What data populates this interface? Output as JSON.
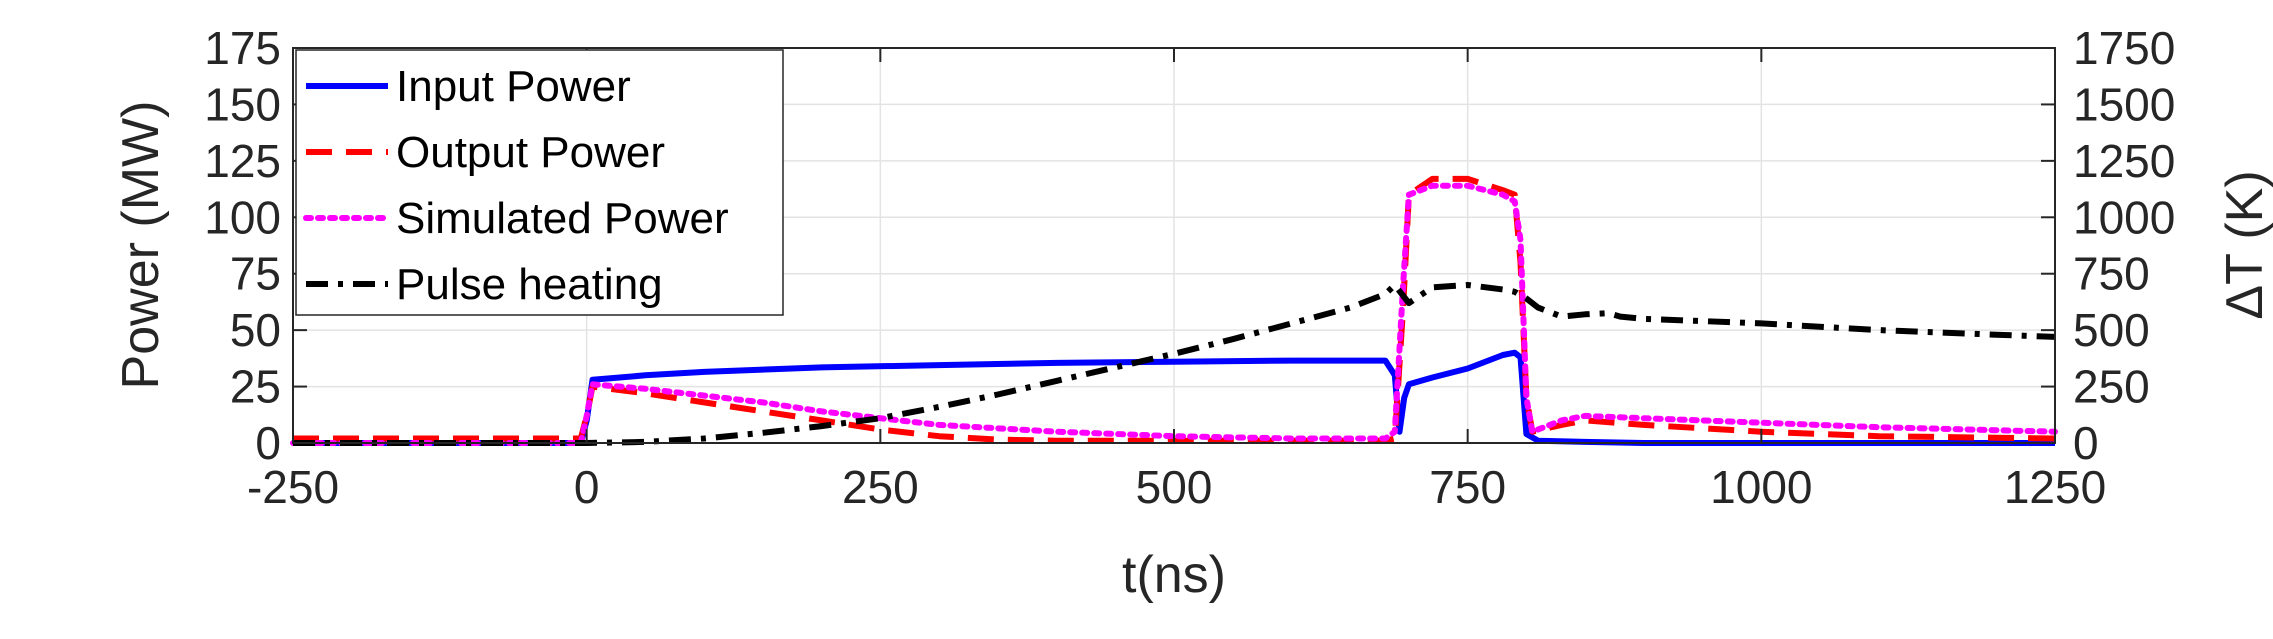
{
  "chart_data": {
    "type": "line",
    "xlabel": "t(ns)",
    "ylabel_left": "Power (MW)",
    "ylabel_right": "ΔT (K)",
    "xlim": [
      -250,
      1250
    ],
    "ylim_left": [
      0,
      175
    ],
    "ylim_right": [
      0,
      1750
    ],
    "x_ticks": [
      "-250",
      "0",
      "250",
      "500",
      "750",
      "1000",
      "1250"
    ],
    "y_ticks_left": [
      "0",
      "25",
      "50",
      "75",
      "100",
      "125",
      "150",
      "175"
    ],
    "y_ticks_right": [
      "0",
      "250",
      "500",
      "750",
      "1000",
      "1250",
      "1500",
      "1750"
    ],
    "grid": true,
    "legend_position": "top-left",
    "series": [
      {
        "name": "Input Power",
        "axis": "left",
        "color": "#0000ff",
        "style": "solid",
        "x": [
          -250,
          -5,
          0,
          5,
          50,
          100,
          200,
          300,
          400,
          500,
          600,
          680,
          688,
          692,
          696,
          700,
          720,
          750,
          780,
          790,
          795,
          800,
          810,
          850,
          900,
          1000,
          1100,
          1250
        ],
        "y": [
          0,
          0,
          10,
          28,
          30,
          31.5,
          33.5,
          34.5,
          35.5,
          36,
          36.5,
          36.5,
          30,
          5,
          20,
          26,
          29,
          33,
          39,
          40,
          38,
          4,
          1,
          0.5,
          0,
          0,
          0,
          0
        ]
      },
      {
        "name": "Output Power",
        "axis": "left",
        "color": "#ff0000",
        "style": "dashed",
        "x": [
          -250,
          -5,
          0,
          5,
          50,
          100,
          150,
          200,
          250,
          300,
          350,
          400,
          500,
          600,
          680,
          688,
          695,
          700,
          720,
          750,
          780,
          790,
          795,
          800,
          805,
          830,
          850,
          900,
          1000,
          1100,
          1250
        ],
        "y": [
          2,
          2,
          12,
          25,
          22,
          18,
          14,
          10,
          6,
          3,
          1.5,
          1,
          1,
          1,
          1,
          2,
          60,
          110,
          117,
          117,
          112,
          110,
          80,
          20,
          5,
          8,
          10,
          8,
          5,
          3,
          2
        ]
      },
      {
        "name": "Simulated Power",
        "axis": "left",
        "color": "#ff00ff",
        "style": "dotted",
        "x": [
          -250,
          -5,
          0,
          5,
          50,
          100,
          150,
          200,
          250,
          300,
          400,
          500,
          600,
          680,
          688,
          695,
          700,
          720,
          750,
          780,
          790,
          795,
          800,
          805,
          830,
          850,
          900,
          1000,
          1100,
          1250
        ],
        "y": [
          0,
          0,
          12,
          26,
          24,
          21,
          18,
          14,
          11,
          8,
          5,
          3,
          2,
          2,
          5,
          70,
          110,
          114,
          114,
          110,
          107,
          90,
          20,
          5,
          10,
          12,
          11,
          9,
          7,
          5
        ]
      },
      {
        "name": "Pulse heating",
        "axis": "right",
        "color": "#000000",
        "style": "dashdot",
        "x": [
          -250,
          -5,
          0,
          50,
          100,
          150,
          200,
          250,
          300,
          350,
          400,
          450,
          500,
          550,
          600,
          650,
          680,
          688,
          700,
          720,
          750,
          780,
          790,
          800,
          810,
          830,
          850,
          870,
          880,
          900,
          950,
          1000,
          1100,
          1200,
          1250
        ],
        "y": [
          0,
          0,
          0,
          5,
          20,
          45,
          75,
          110,
          160,
          215,
          275,
          335,
          395,
          460,
          530,
          600,
          660,
          700,
          620,
          690,
          700,
          680,
          670,
          640,
          600,
          560,
          570,
          575,
          560,
          550,
          540,
          530,
          500,
          480,
          470
        ]
      }
    ]
  }
}
